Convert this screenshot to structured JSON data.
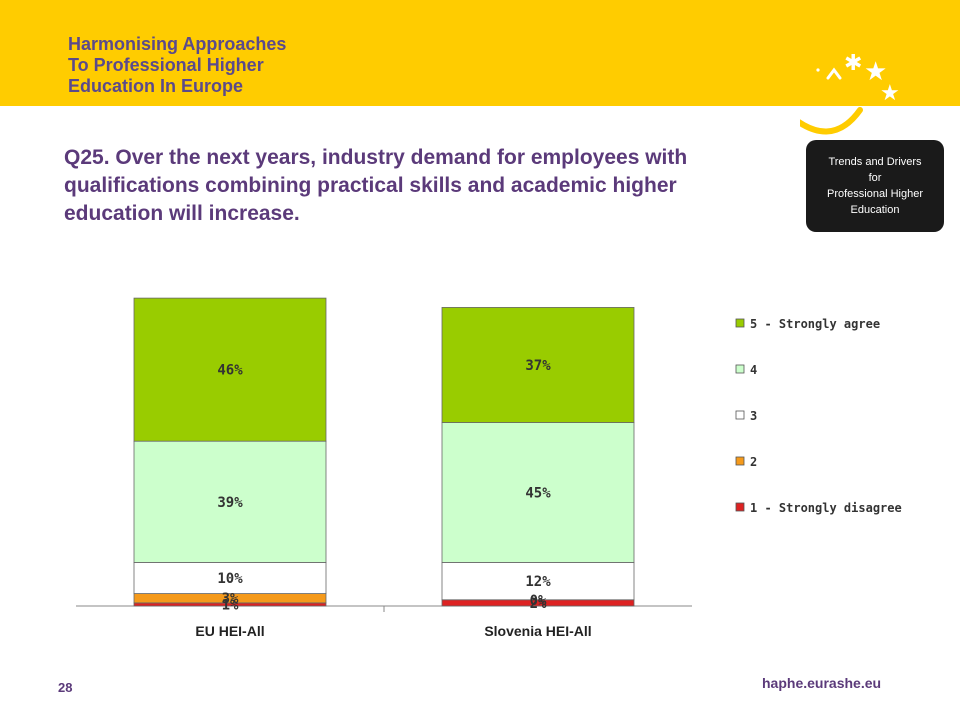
{
  "header": {
    "logo_lines": [
      "Harmonising Approaches",
      "To Professional Higher",
      "Education In Europe"
    ],
    "accent_color": "#ffcc00",
    "text_color": "#5b4a8b",
    "decoration": "stars-and-smile-icon"
  },
  "slide_title": "Q25. Over the next years, industry demand for employees with qualifications combining practical skills and academic higher education will increase.",
  "tag_box": {
    "lines": [
      "Trends and Drivers",
      "for",
      "Professional Higher",
      "Education"
    ]
  },
  "footer": {
    "page_number": "28",
    "url": "haphe.eurashe.eu"
  },
  "chart_data": {
    "type": "bar",
    "stacked": true,
    "categories": [
      "EU HEI-All",
      "Slovenia HEI-All"
    ],
    "series": [
      {
        "name": "1 - Strongly disagree",
        "color": "#dd2222",
        "values": [
          1,
          2
        ],
        "labels": [
          "1%",
          "2%"
        ]
      },
      {
        "name": "2",
        "color": "#f59a1b",
        "values": [
          3,
          0
        ],
        "labels": [
          "3%",
          "0%"
        ]
      },
      {
        "name": "3",
        "color": "#ffffff",
        "values": [
          10,
          12
        ],
        "labels": [
          "10%",
          "12%"
        ]
      },
      {
        "name": "4",
        "color": "#ccffcc",
        "values": [
          39,
          45
        ],
        "labels": [
          "39%",
          "45%"
        ]
      },
      {
        "name": "5 - Strongly agree",
        "color": "#99cc00",
        "values": [
          46,
          37
        ],
        "labels": [
          "46%",
          "37%"
        ]
      }
    ],
    "legend_order": [
      "5 - Strongly agree",
      "4",
      "3",
      "2",
      "1 - Strongly disagree"
    ],
    "legend_position": "right",
    "ylim": [
      0,
      100
    ],
    "grid": false
  }
}
